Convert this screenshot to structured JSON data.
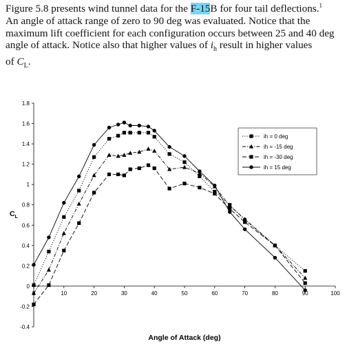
{
  "text": {
    "line1_a": "Figure 5.8 presents wind tunnel data for the ",
    "line1_hl": "F-15",
    "line1_b": "B for four tail deflections.",
    "footnote_mark": "1",
    "line2": "An angle of attack range of zero to 90 deg was evaluated. Notice that the",
    "line3": "maximum lift coefficient for each configuration occurs between 25 and 40 deg",
    "line4_a": "angle of attack. Notice also that higher values of ",
    "line4_i": "i",
    "line4_sub": "h",
    "line4_b": " result in higher values",
    "line5_a": "of ",
    "line5_c": "C",
    "line5_sub": "L",
    "line5_b": "."
  },
  "chart_data": {
    "type": "line",
    "xlabel": "Angle of Attack (deg)",
    "ylabel": "C",
    "ylabel_sub": "L",
    "xlim": [
      0,
      100
    ],
    "ylim": [
      -0.4,
      1.8
    ],
    "xticks": [
      "0",
      "10",
      "20",
      "30",
      "40",
      "50",
      "60",
      "70",
      "80",
      "90",
      "100"
    ],
    "yticks": [
      "-0.4",
      "-0.2",
      "0",
      "0.2",
      "0.4",
      "0.6",
      "0.8",
      "1",
      "1.2",
      "1.4",
      "1.6",
      "1.8"
    ],
    "legend_position": "right",
    "series": [
      {
        "name": "ih = 0 deg",
        "marker": "square",
        "dash": "dotted",
        "marker_fill": "#000000",
        "points": [
          [
            0,
            0.01
          ],
          [
            5,
            0.34
          ],
          [
            10,
            0.68
          ],
          [
            15,
            0.94
          ],
          [
            20,
            1.27
          ],
          [
            25,
            1.45
          ],
          [
            28,
            1.48
          ],
          [
            30,
            1.51
          ],
          [
            32,
            1.51
          ],
          [
            35,
            1.51
          ],
          [
            38,
            1.51
          ],
          [
            40,
            1.47
          ],
          [
            45,
            1.3
          ],
          [
            50,
            1.22
          ],
          [
            55,
            1.08
          ],
          [
            60,
            0.93
          ],
          [
            65,
            0.8
          ],
          [
            70,
            0.65
          ],
          [
            80,
            0.4
          ],
          [
            90,
            0.15
          ]
        ]
      },
      {
        "name": "ih = -15 deg",
        "marker": "triangle",
        "dash": "dashdot",
        "marker_fill": "#000000",
        "points": [
          [
            0,
            -0.07
          ],
          [
            5,
            0.16
          ],
          [
            10,
            0.52
          ],
          [
            15,
            0.81
          ],
          [
            20,
            1.09
          ],
          [
            25,
            1.29
          ],
          [
            28,
            1.28
          ],
          [
            30,
            1.29
          ],
          [
            32,
            1.31
          ],
          [
            35,
            1.32
          ],
          [
            38,
            1.35
          ],
          [
            40,
            1.33
          ],
          [
            45,
            1.15
          ],
          [
            50,
            1.17
          ],
          [
            55,
            1.11
          ],
          [
            60,
            0.98
          ],
          [
            65,
            0.79
          ],
          [
            70,
            0.66
          ],
          [
            80,
            0.4
          ],
          [
            90,
            0.08
          ]
        ]
      },
      {
        "name": "ih = -30 deg",
        "marker": "square",
        "dash": "longdash",
        "marker_fill": "#000000",
        "points": [
          [
            0,
            -0.18
          ],
          [
            5,
            0.01
          ],
          [
            10,
            0.35
          ],
          [
            15,
            0.62
          ],
          [
            20,
            0.92
          ],
          [
            25,
            1.1
          ],
          [
            28,
            1.1
          ],
          [
            30,
            1.09
          ],
          [
            32,
            1.15
          ],
          [
            35,
            1.16
          ],
          [
            38,
            1.19
          ],
          [
            40,
            1.16
          ],
          [
            45,
            0.96
          ],
          [
            50,
            1.01
          ],
          [
            55,
            0.97
          ],
          [
            60,
            0.91
          ],
          [
            65,
            0.76
          ],
          [
            70,
            0.63
          ],
          [
            80,
            0.4
          ],
          [
            90,
            0.03
          ]
        ]
      },
      {
        "name": "ih = 15 deg",
        "marker": "circle",
        "dash": "solid",
        "marker_fill": "#000000",
        "points": [
          [
            0,
            0.21
          ],
          [
            5,
            0.48
          ],
          [
            10,
            0.82
          ],
          [
            15,
            1.08
          ],
          [
            20,
            1.39
          ],
          [
            25,
            1.56
          ],
          [
            28,
            1.59
          ],
          [
            30,
            1.61
          ],
          [
            32,
            1.58
          ],
          [
            35,
            1.58
          ],
          [
            38,
            1.57
          ],
          [
            40,
            1.53
          ],
          [
            45,
            1.37
          ],
          [
            50,
            1.28
          ],
          [
            55,
            1.13
          ],
          [
            60,
            0.99
          ],
          [
            65,
            0.73
          ],
          [
            70,
            0.56
          ],
          [
            80,
            0.28
          ],
          [
            90,
            -0.04
          ]
        ]
      }
    ]
  },
  "colors": {
    "line": "#000000",
    "highlight": "#79d6f5",
    "background": "#ffffff"
  }
}
